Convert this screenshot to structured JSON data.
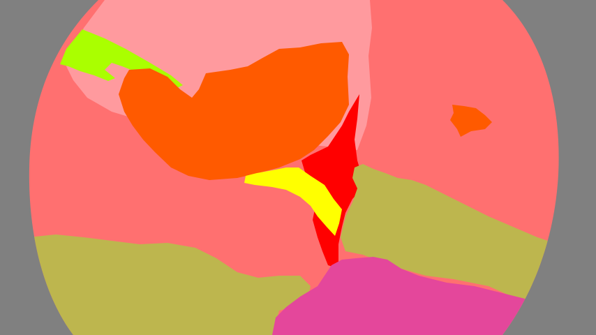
{
  "image": {
    "kind": "segmentation-mask",
    "background_color": "#808080",
    "regions": [
      {
        "name": "salmon-region",
        "color": "#FF7070"
      },
      {
        "name": "light-pink-region",
        "color": "#FF9A9E"
      },
      {
        "name": "orange-region",
        "color": "#FF5A00"
      },
      {
        "name": "red-region",
        "color": "#FF0000"
      },
      {
        "name": "yellow-region",
        "color": "#FFFF00"
      },
      {
        "name": "lime-region",
        "color": "#AAFF00"
      },
      {
        "name": "olive-region",
        "color": "#BDB64E"
      },
      {
        "name": "magenta-region",
        "color": "#E4479B"
      }
    ]
  }
}
